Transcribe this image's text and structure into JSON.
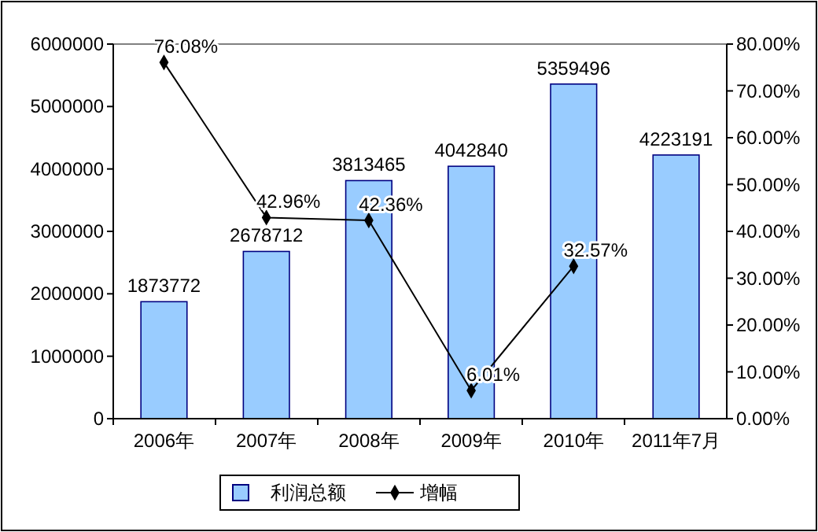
{
  "chart_data": {
    "type": "bar",
    "categories": [
      "2006年",
      "2007年",
      "2008年",
      "2009年",
      "2010年",
      "2011年7月"
    ],
    "series": [
      {
        "name": "利润总额",
        "color": "#99ccff",
        "values": [
          1873772,
          2678712,
          3813465,
          4042840,
          5359496,
          4223191
        ]
      },
      {
        "name": "增幅",
        "type": "line",
        "axis": "y2",
        "color": "#000000",
        "marker": "diamond",
        "values": [
          76.08,
          42.96,
          42.36,
          6.01,
          32.57,
          null
        ],
        "value_labels": [
          "76.08%",
          "42.96%",
          "42.36%",
          "6.01%",
          "32.57%",
          null
        ]
      }
    ],
    "data_labels": true,
    "ylim": [
      0,
      6000000
    ],
    "yticks": [
      0,
      1000000,
      2000000,
      3000000,
      4000000,
      5000000,
      6000000
    ],
    "y2lim": [
      0,
      80
    ],
    "y2ticks": [
      {
        "value": 0,
        "label": "0.00%"
      },
      {
        "value": 10,
        "label": "10.00%"
      },
      {
        "value": 20,
        "label": "20.00%"
      },
      {
        "value": 30,
        "label": "30.00%"
      },
      {
        "value": 40,
        "label": "40.00%"
      },
      {
        "value": 50,
        "label": "50.00%"
      },
      {
        "value": 60,
        "label": "60.00%"
      },
      {
        "value": 70,
        "label": "70.00%"
      },
      {
        "value": 80,
        "label": "80.00%"
      }
    ],
    "legend": "bottom",
    "grid": false
  }
}
